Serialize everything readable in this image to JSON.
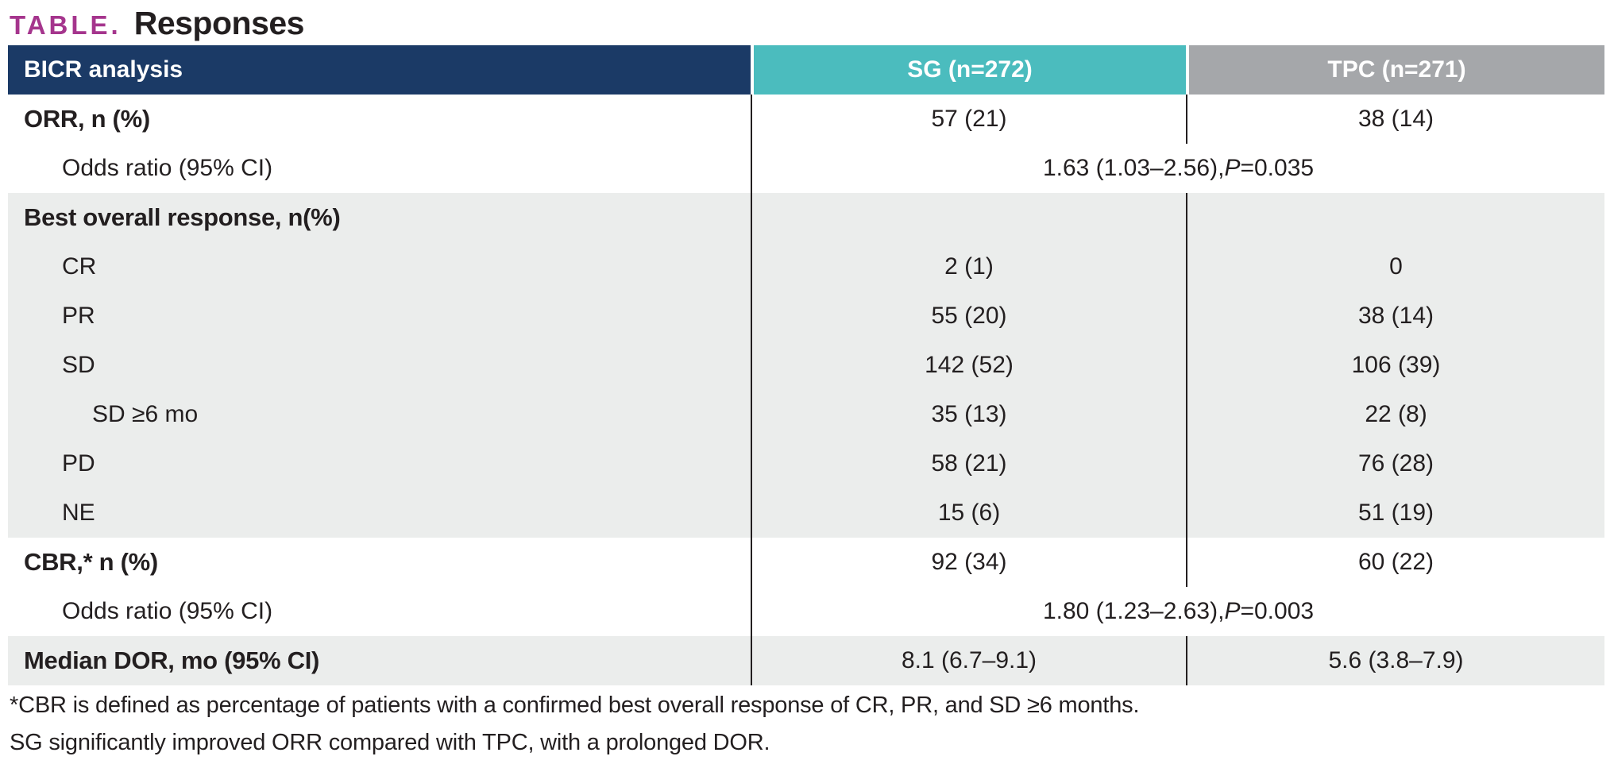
{
  "title": {
    "tag": "TABLE.",
    "text": "Responses"
  },
  "colors": {
    "header_col1_bg": "#1b3a66",
    "header_col2_bg": "#4bbcbe",
    "header_col3_bg": "#a5a7aa",
    "row_alt_bg": "#ebedec",
    "title_tag": "#a5358d",
    "text": "#231f20",
    "divider": "#231f20"
  },
  "table": {
    "header": {
      "col1": "BICR analysis",
      "col2": "SG (n=272)",
      "col3": "TPC (n=271)"
    },
    "rows": [
      {
        "label": "ORR, n (%)",
        "sg": "57 (21)",
        "tpc": "38 (14)"
      },
      {
        "label": "Odds ratio (95% CI)",
        "span_pre": "1.63 (1.03–2.56), ",
        "span_p": "P",
        "span_post": "=0.035"
      },
      {
        "label": "Best overall response, n(%)",
        "sg": "",
        "tpc": ""
      },
      {
        "label": "CR",
        "sg": "2 (1)",
        "tpc": "0"
      },
      {
        "label": "PR",
        "sg": "55 (20)",
        "tpc": "38 (14)"
      },
      {
        "label": "SD",
        "sg": "142 (52)",
        "tpc": "106 (39)"
      },
      {
        "label": "SD ≥6 mo",
        "sg": "35 (13)",
        "tpc": "22 (8)"
      },
      {
        "label": "PD",
        "sg": "58 (21)",
        "tpc": "76 (28)"
      },
      {
        "label": "NE",
        "sg": "15 (6)",
        "tpc": "51 (19)"
      },
      {
        "label": "CBR,* n (%)",
        "sg": "92 (34)",
        "tpc": "60 (22)"
      },
      {
        "label": "Odds ratio (95% CI)",
        "span_pre": "1.80 (1.23–2.63), ",
        "span_p": "P",
        "span_post": "=0.003"
      },
      {
        "label": "Median DOR, mo (95% CI)",
        "sg": "8.1 (6.7–9.1)",
        "tpc": "5.6 (3.8–7.9)"
      }
    ],
    "footnotes": [
      "*CBR is defined as percentage of patients with a confirmed best overall response of CR, PR, and SD ≥6 months.",
      "SG significantly improved ORR compared with TPC, with a prolonged DOR."
    ]
  },
  "chart_data": {
    "type": "table",
    "title": "Responses",
    "columns": [
      "BICR analysis",
      "SG (n=272)",
      "TPC (n=271)"
    ],
    "rows": [
      [
        "ORR, n (%)",
        "57 (21)",
        "38 (14)"
      ],
      [
        "Odds ratio (95% CI)",
        "1.63 (1.03–2.56), P=0.035",
        ""
      ],
      [
        "Best overall response, n(%)",
        "",
        ""
      ],
      [
        "CR",
        "2 (1)",
        "0"
      ],
      [
        "PR",
        "55 (20)",
        "38 (14)"
      ],
      [
        "SD",
        "142 (52)",
        "106 (39)"
      ],
      [
        "SD ≥6 mo",
        "35 (13)",
        "22 (8)"
      ],
      [
        "PD",
        "58 (21)",
        "76 (28)"
      ],
      [
        "NE",
        "15 (6)",
        "51 (19)"
      ],
      [
        "CBR,* n (%)",
        "92 (34)",
        "60 (22)"
      ],
      [
        "Odds ratio (95% CI)",
        "1.80 (1.23–2.63), P=0.003",
        ""
      ],
      [
        "Median DOR, mo (95% CI)",
        "8.1 (6.7–9.1)",
        "5.6 (3.8–7.9)"
      ]
    ]
  }
}
